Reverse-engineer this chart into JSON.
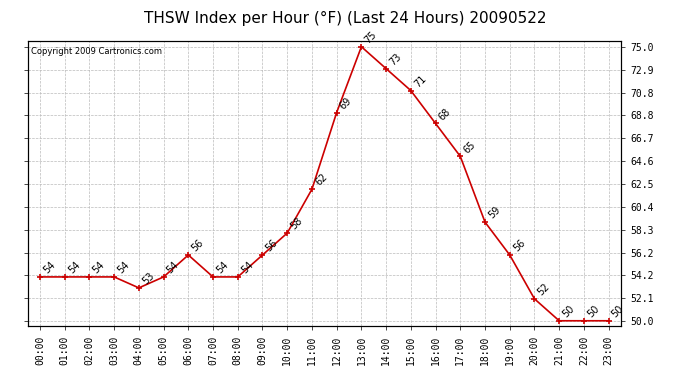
{
  "title": "THSW Index per Hour (°F) (Last 24 Hours) 20090522",
  "copyright": "Copyright 2009 Cartronics.com",
  "hours": [
    "00:00",
    "01:00",
    "02:00",
    "03:00",
    "04:00",
    "05:00",
    "06:00",
    "07:00",
    "08:00",
    "09:00",
    "10:00",
    "11:00",
    "12:00",
    "13:00",
    "14:00",
    "15:00",
    "16:00",
    "17:00",
    "18:00",
    "19:00",
    "20:00",
    "21:00",
    "22:00",
    "23:00"
  ],
  "values": [
    54,
    54,
    54,
    54,
    53,
    54,
    56,
    54,
    54,
    56,
    58,
    62,
    69,
    75,
    73,
    71,
    68,
    65,
    59,
    56,
    52,
    50,
    50,
    50
  ],
  "ylim_min": 49.5,
  "ylim_max": 75.5,
  "yticks": [
    50.0,
    52.1,
    54.2,
    56.2,
    58.3,
    60.4,
    62.5,
    64.6,
    66.7,
    68.8,
    70.8,
    72.9,
    75.0
  ],
  "ytick_labels": [
    "50.0",
    "52.1",
    "54.2",
    "56.2",
    "58.3",
    "60.4",
    "62.5",
    "64.6",
    "66.7",
    "68.8",
    "70.8",
    "72.9",
    "75.0"
  ],
  "line_color": "#cc0000",
  "marker_color": "#cc0000",
  "bg_color": "#ffffff",
  "grid_color": "#bbbbbb",
  "title_fontsize": 11,
  "tick_fontsize": 7,
  "annot_fontsize": 7,
  "copyright_fontsize": 6
}
